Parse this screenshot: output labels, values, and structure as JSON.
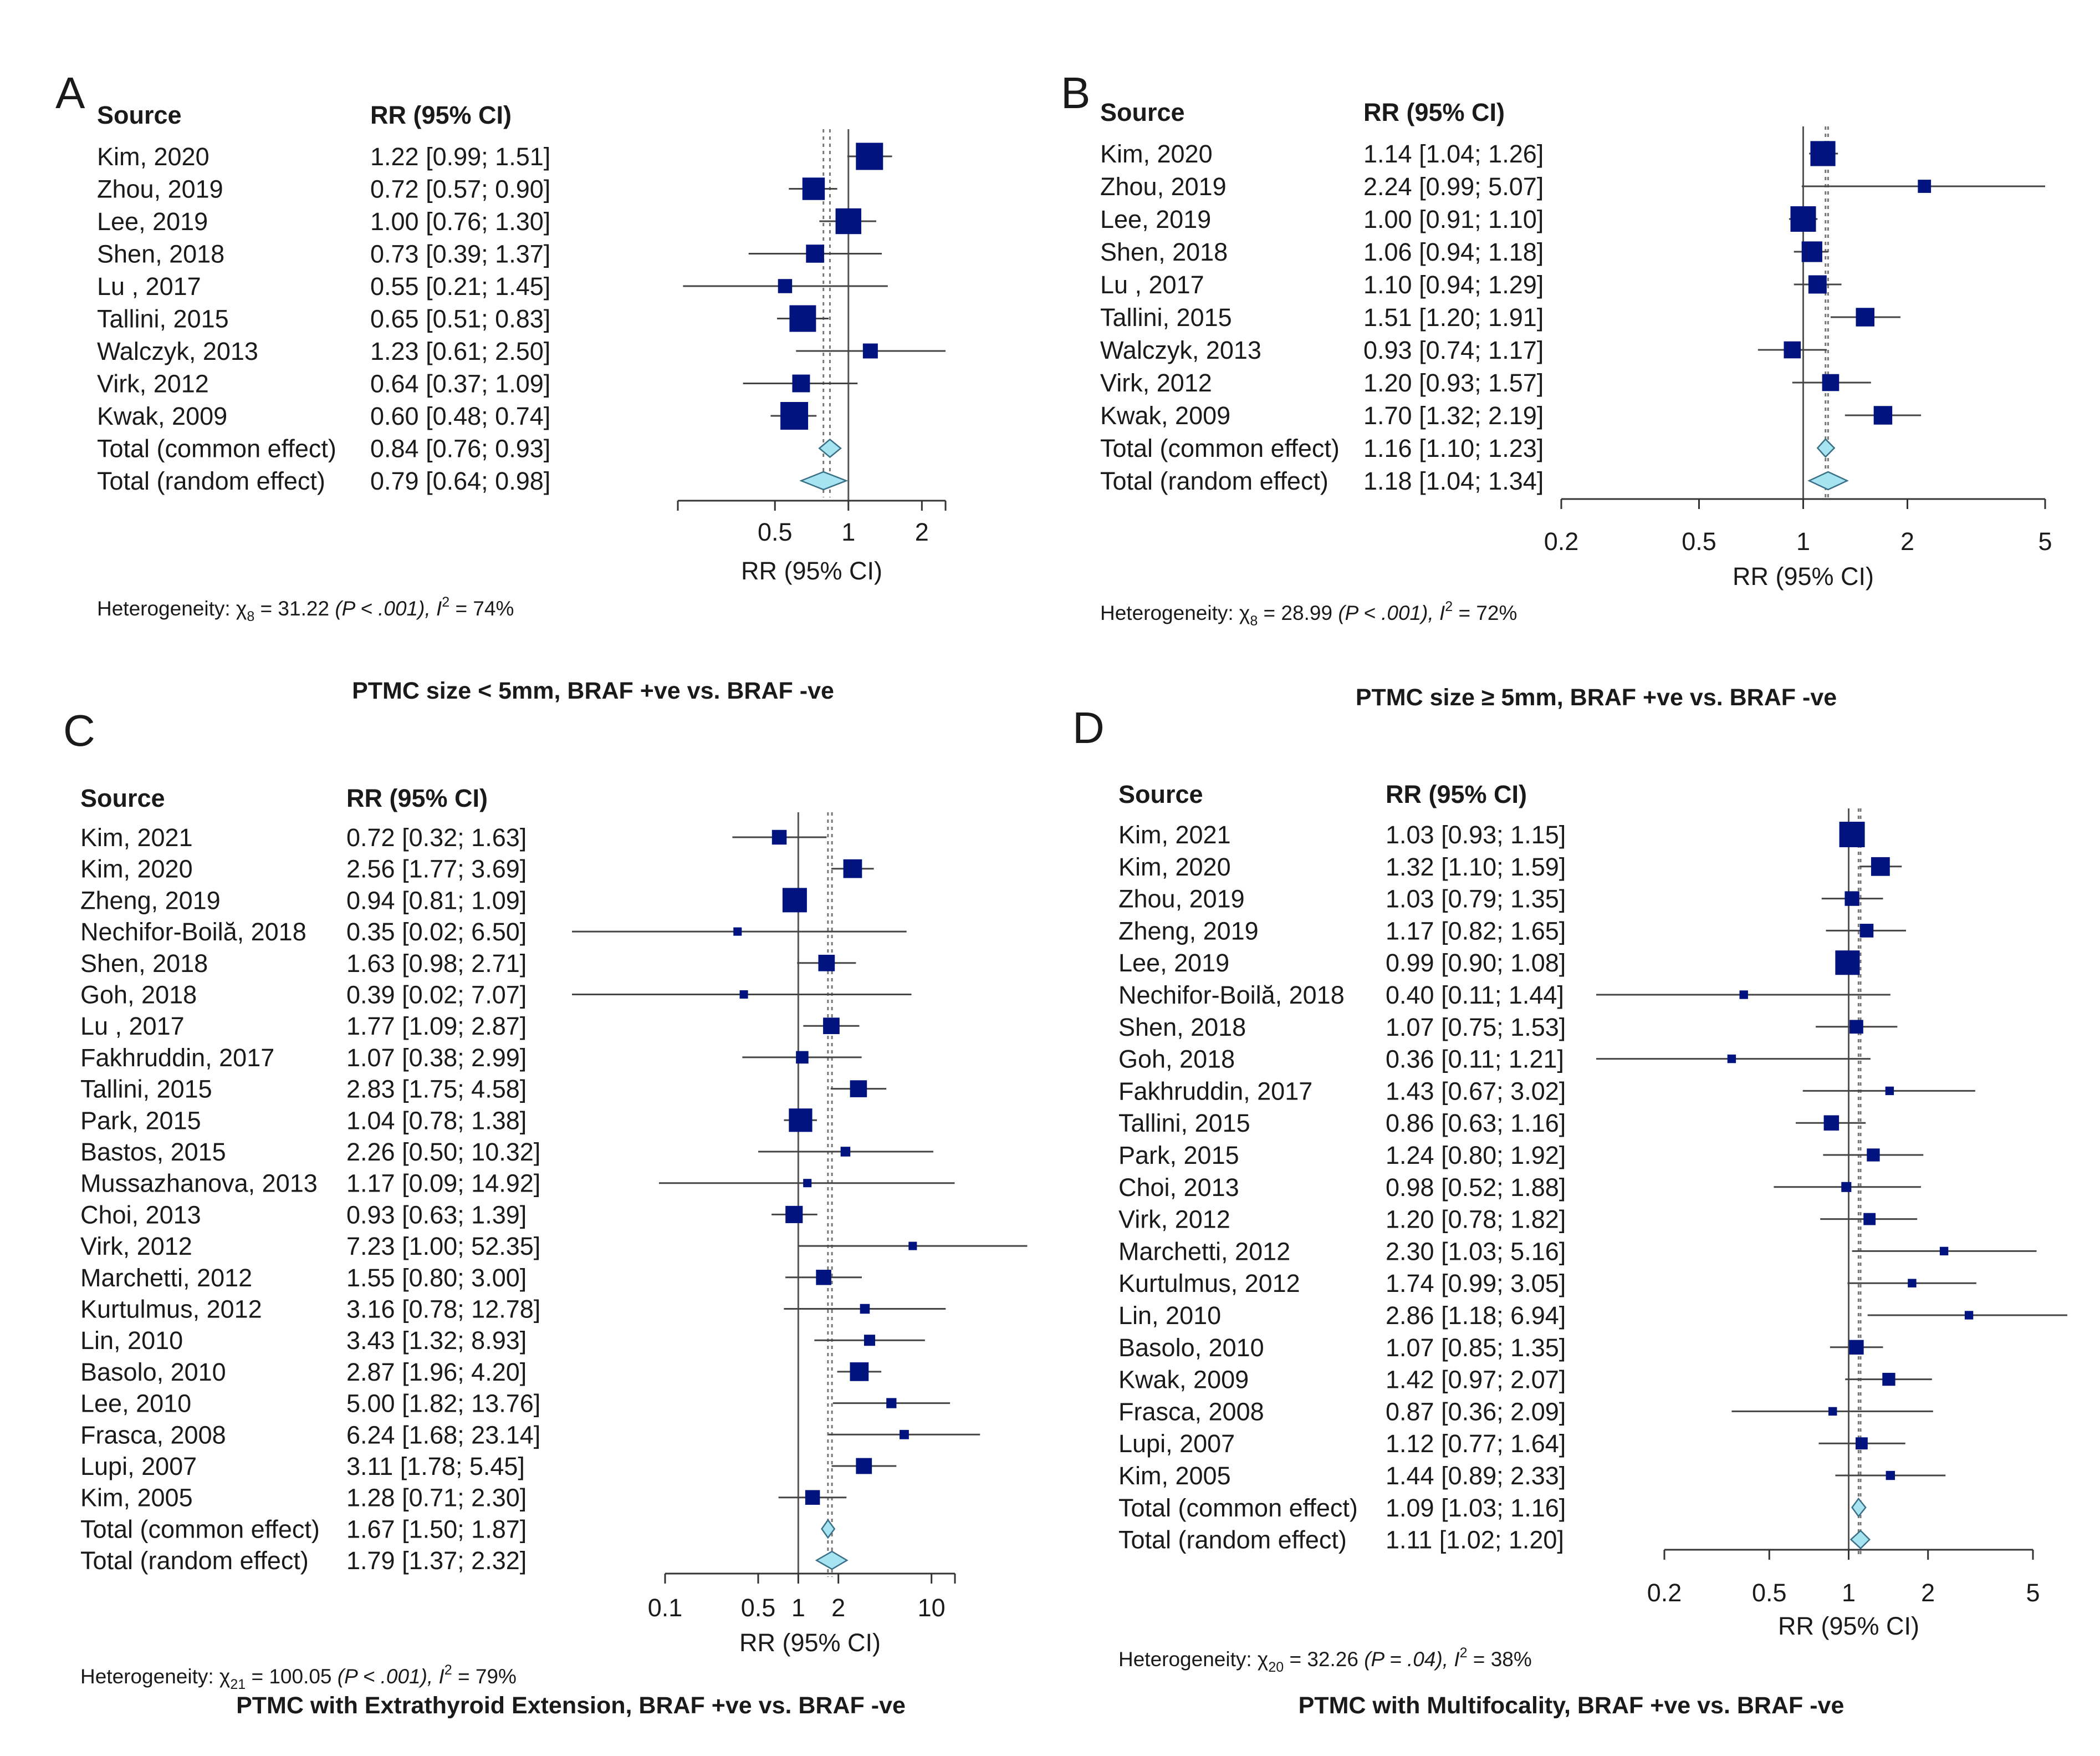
{
  "figure": {
    "type": "forest-plot-panels"
  },
  "colors": {
    "box": "#00137f",
    "diamond_fill": "#a6e4f2",
    "diamond_stroke": "#3a6f86",
    "ci_line": "#444444",
    "axis": "#333333",
    "ref_line": "#555555",
    "pooled_line": "#777777"
  },
  "chart_data": [
    {
      "type": "forest",
      "panel_label": "A",
      "scale": "log",
      "col_source": "Source",
      "col_estimate": "RR (95% CI)",
      "xlabel": "RR (95% CI)",
      "ticks": [
        "0.5",
        "1",
        "2"
      ],
      "xlim": [
        0.2,
        2.5
      ],
      "common_rr": 0.84,
      "random_rr": 0.79,
      "heterogeneity": {
        "prefix": "Heterogeneity: χ",
        "sub": "8",
        "chi": "= 31.22",
        "p": "(P < .001), ",
        "i": "I",
        "i_val": " = 74%"
      },
      "caption": "PTMC size < 5mm, BRAF +ve vs. BRAF -ve",
      "studies": [
        {
          "source": "Kim, 2020",
          "ci_text": "1.22 [0.99; 1.51]",
          "rr": 1.22,
          "lo": 0.99,
          "hi": 1.51,
          "weight": 9.5
        },
        {
          "source": "Zhou, 2019",
          "ci_text": "0.72 [0.57; 0.90]",
          "rr": 0.72,
          "lo": 0.57,
          "hi": 0.9,
          "weight": 5.8
        },
        {
          "source": "Lee, 2019",
          "ci_text": "1.00 [0.76; 1.30]",
          "rr": 1.0,
          "lo": 0.76,
          "hi": 1.3,
          "weight": 8.3
        },
        {
          "source": "Shen, 2018",
          "ci_text": "0.73 [0.39; 1.37]",
          "rr": 0.73,
          "lo": 0.39,
          "hi": 1.37,
          "weight": 3.2
        },
        {
          "source": "Lu , 2017",
          "ci_text": "0.55 [0.21; 1.45]",
          "rr": 0.55,
          "lo": 0.21,
          "hi": 1.45,
          "weight": 1.5
        },
        {
          "source": "Tallini, 2015",
          "ci_text": "0.65 [0.51; 0.83]",
          "rr": 0.65,
          "lo": 0.51,
          "hi": 0.83,
          "weight": 9.0
        },
        {
          "source": "Walczyk, 2013",
          "ci_text": "1.23 [0.61; 2.50]",
          "rr": 1.23,
          "lo": 0.61,
          "hi": 2.5,
          "weight": 1.8
        },
        {
          "source": "Virk, 2012",
          "ci_text": "0.64 [0.37; 1.09]",
          "rr": 0.64,
          "lo": 0.37,
          "hi": 1.09,
          "weight": 3.0
        },
        {
          "source": "Kwak, 2009",
          "ci_text": "0.60 [0.48; 0.74]",
          "rr": 0.6,
          "lo": 0.48,
          "hi": 0.74,
          "weight": 10.0
        }
      ],
      "totals": [
        {
          "source": "Total (common effect)",
          "ci_text": "0.84 [0.76; 0.93]",
          "rr": 0.84,
          "lo": 0.76,
          "hi": 0.93
        },
        {
          "source": "Total (random effect)",
          "ci_text": "0.79 [0.64; 0.98]",
          "rr": 0.79,
          "lo": 0.64,
          "hi": 0.98
        }
      ]
    },
    {
      "type": "forest",
      "panel_label": "B",
      "scale": "log",
      "col_source": "Source",
      "col_estimate": "RR (95% CI)",
      "xlabel": "RR (95% CI)",
      "ticks": [
        "0.2",
        "0.5",
        "1",
        "2",
        "5"
      ],
      "xlim": [
        0.2,
        5
      ],
      "common_rr": 1.16,
      "random_rr": 1.18,
      "heterogeneity": {
        "prefix": "Heterogeneity: χ",
        "sub": "8",
        "chi": "= 28.99",
        "p": "(P < .001), ",
        "i": "I",
        "i_val": " = 72%"
      },
      "caption": "PTMC size ≥ 5mm, BRAF +ve vs. BRAF -ve",
      "studies": [
        {
          "source": "Kim, 2020",
          "ci_text": "1.14 [1.04; 1.26]",
          "rr": 1.14,
          "lo": 1.04,
          "hi": 1.26,
          "weight": 9.5
        },
        {
          "source": "Zhou, 2019",
          "ci_text": "2.24 [0.99; 5.07]",
          "rr": 2.24,
          "lo": 0.99,
          "hi": 5.07,
          "weight": 1.2
        },
        {
          "source": "Lee, 2019",
          "ci_text": "1.00 [0.91; 1.10]",
          "rr": 1.0,
          "lo": 0.91,
          "hi": 1.1,
          "weight": 10.0
        },
        {
          "source": "Shen, 2018",
          "ci_text": "1.06 [0.94; 1.18]",
          "rr": 1.06,
          "lo": 0.94,
          "hi": 1.18,
          "weight": 5.5
        },
        {
          "source": "Lu , 2017",
          "ci_text": "1.10 [0.94; 1.29]",
          "rr": 1.1,
          "lo": 0.94,
          "hi": 1.29,
          "weight": 3.8
        },
        {
          "source": "Tallini, 2015",
          "ci_text": "1.51 [1.20; 1.91]",
          "rr": 1.51,
          "lo": 1.2,
          "hi": 1.91,
          "weight": 4.0
        },
        {
          "source": "Walczyk, 2013",
          "ci_text": "0.93 [0.74; 1.17]",
          "rr": 0.93,
          "lo": 0.74,
          "hi": 1.17,
          "weight": 3.0
        },
        {
          "source": "Virk, 2012",
          "ci_text": "1.20 [0.93; 1.57]",
          "rr": 1.2,
          "lo": 0.93,
          "hi": 1.57,
          "weight": 3.0
        },
        {
          "source": "Kwak, 2009",
          "ci_text": "1.70 [1.32; 2.19]",
          "rr": 1.7,
          "lo": 1.32,
          "hi": 2.19,
          "weight": 4.0
        }
      ],
      "totals": [
        {
          "source": "Total (common effect)",
          "ci_text": "1.16 [1.10; 1.23]",
          "rr": 1.16,
          "lo": 1.1,
          "hi": 1.23
        },
        {
          "source": "Total (random effect)",
          "ci_text": "1.18 [1.04; 1.34]",
          "rr": 1.18,
          "lo": 1.04,
          "hi": 1.34
        }
      ]
    },
    {
      "type": "forest",
      "panel_label": "C",
      "scale": "log",
      "col_source": "Source",
      "col_estimate": "RR (95% CI)",
      "xlabel": "RR (95% CI)",
      "ticks": [
        "0.1",
        "0.5",
        "1",
        "2",
        "10"
      ],
      "xlim": [
        0.1,
        15
      ],
      "common_rr": 1.67,
      "random_rr": 1.79,
      "heterogeneity": {
        "prefix": "Heterogeneity: χ",
        "sub": "21",
        "chi": "= 100.05",
        "p": "(P < .001), ",
        "i": "I",
        "i_val": " = 79%"
      },
      "caption": "PTMC with Extrathyroid Extension, BRAF +ve vs. BRAF -ve",
      "studies": [
        {
          "source": "Kim, 2021",
          "ci_text": "0.72 [0.32;  1.63]",
          "rr": 0.72,
          "lo": 0.32,
          "hi": 1.63,
          "weight": 2.5
        },
        {
          "source": "Kim, 2020",
          "ci_text": "2.56 [1.77;  3.69]",
          "rr": 2.56,
          "lo": 1.77,
          "hi": 3.69,
          "weight": 5.0
        },
        {
          "source": "Zheng, 2019",
          "ci_text": "0.94 [0.81;  1.09]",
          "rr": 0.94,
          "lo": 0.81,
          "hi": 1.09,
          "weight": 10.0
        },
        {
          "source": "Nechifor-Boilă, 2018",
          "ci_text": "0.35 [0.02;  6.50]",
          "rr": 0.35,
          "lo": 0.02,
          "hi": 6.5,
          "weight": 0.3
        },
        {
          "source": "Shen, 2018",
          "ci_text": "1.63 [0.98;  2.71]",
          "rr": 1.63,
          "lo": 0.98,
          "hi": 2.71,
          "weight": 3.5
        },
        {
          "source": "Goh, 2018",
          "ci_text": "0.39 [0.02;  7.07]",
          "rr": 0.39,
          "lo": 0.02,
          "hi": 7.07,
          "weight": 0.3
        },
        {
          "source": "Lu , 2017",
          "ci_text": "1.77 [1.09;  2.87]",
          "rr": 1.77,
          "lo": 1.09,
          "hi": 2.87,
          "weight": 3.5
        },
        {
          "source": "Fakhruddin, 2017",
          "ci_text": "1.07 [0.38;  2.99]",
          "rr": 1.07,
          "lo": 0.38,
          "hi": 2.99,
          "weight": 1.5
        },
        {
          "source": "Tallini, 2015",
          "ci_text": "2.83 [1.75;  4.58]",
          "rr": 2.83,
          "lo": 1.75,
          "hi": 4.58,
          "weight": 3.8
        },
        {
          "source": "Park, 2015",
          "ci_text": "1.04 [0.78;  1.38]",
          "rr": 1.04,
          "lo": 0.78,
          "hi": 1.38,
          "weight": 9.0
        },
        {
          "source": "Bastos, 2015",
          "ci_text": "2.26 [0.50; 10.32]",
          "rr": 2.26,
          "lo": 0.5,
          "hi": 10.32,
          "weight": 0.6
        },
        {
          "source": "Mussazhanova, 2013",
          "ci_text": "1.17 [0.09; 14.92]",
          "rr": 1.17,
          "lo": 0.09,
          "hi": 14.92,
          "weight": 0.3
        },
        {
          "source": "Choi, 2013",
          "ci_text": "0.93 [0.63;  1.39]",
          "rr": 0.93,
          "lo": 0.63,
          "hi": 1.39,
          "weight": 4.0
        },
        {
          "source": "Virk, 2012",
          "ci_text": "7.23 [1.00; 52.35]",
          "rr": 7.23,
          "lo": 1.0,
          "hi": 52.35,
          "weight": 0.3
        },
        {
          "source": "Marchetti, 2012",
          "ci_text": "1.55 [0.80;  3.00]",
          "rr": 1.55,
          "lo": 0.8,
          "hi": 3.0,
          "weight": 2.8
        },
        {
          "source": "Kurtulmus, 2012",
          "ci_text": "3.16 [0.78; 12.78]",
          "rr": 3.16,
          "lo": 0.78,
          "hi": 12.78,
          "weight": 0.6
        },
        {
          "source": "Lin, 2010",
          "ci_text": "3.43 [1.32;  8.93]",
          "rr": 3.43,
          "lo": 1.32,
          "hi": 8.93,
          "weight": 1.0
        },
        {
          "source": "Basolo, 2010",
          "ci_text": "2.87 [1.96;  4.20]",
          "rr": 2.87,
          "lo": 1.96,
          "hi": 4.2,
          "weight": 5.0
        },
        {
          "source": "Lee, 2010",
          "ci_text": "5.00 [1.82; 13.76]",
          "rr": 5.0,
          "lo": 1.82,
          "hi": 13.76,
          "weight": 0.7
        },
        {
          "source": "Frasca, 2008",
          "ci_text": "6.24 [1.68; 23.14]",
          "rr": 6.24,
          "lo": 1.68,
          "hi": 23.14,
          "weight": 0.5
        },
        {
          "source": "Lupi, 2007",
          "ci_text": "3.11 [1.78;  5.45]",
          "rr": 3.11,
          "lo": 1.78,
          "hi": 5.45,
          "weight": 3.2
        },
        {
          "source": "Kim, 2005",
          "ci_text": "1.28 [0.71;  2.30]",
          "rr": 1.28,
          "lo": 0.71,
          "hi": 2.3,
          "weight": 2.5
        }
      ],
      "totals": [
        {
          "source": "Total (common effect)",
          "ci_text": "1.67 [1.50;  1.87]",
          "rr": 1.67,
          "lo": 1.5,
          "hi": 1.87
        },
        {
          "source": "Total (random effect)",
          "ci_text": "1.79 [1.37;  2.32]",
          "rr": 1.79,
          "lo": 1.37,
          "hi": 2.32
        }
      ]
    },
    {
      "type": "forest",
      "panel_label": "D",
      "scale": "log",
      "col_source": "Source",
      "col_estimate": "RR (95% CI)",
      "xlabel": "RR (95% CI)",
      "ticks": [
        "0.2",
        "0.5",
        "1",
        "2",
        "5"
      ],
      "xlim": [
        0.2,
        5
      ],
      "common_rr": 1.09,
      "random_rr": 1.11,
      "heterogeneity": {
        "prefix": "Heterogeneity: χ",
        "sub": "20",
        "chi": "= 32.26",
        "p": "(P = .04), ",
        "i": "I",
        "i_val": " = 38%"
      },
      "caption": "PTMC with Multifocality, BRAF +ve vs. BRAF -ve",
      "studies": [
        {
          "source": "Kim, 2021",
          "ci_text": "1.03 [0.93; 1.15]",
          "rr": 1.03,
          "lo": 0.93,
          "hi": 1.15,
          "weight": 10.0
        },
        {
          "source": "Kim, 2020",
          "ci_text": "1.32 [1.10; 1.59]",
          "rr": 1.32,
          "lo": 1.1,
          "hi": 1.59,
          "weight": 4.5
        },
        {
          "source": "Zhou, 2019",
          "ci_text": "1.03 [0.79; 1.35]",
          "rr": 1.03,
          "lo": 0.79,
          "hi": 1.35,
          "weight": 2.2
        },
        {
          "source": "Zheng, 2019",
          "ci_text": "1.17 [0.82; 1.65]",
          "rr": 1.17,
          "lo": 0.82,
          "hi": 1.65,
          "weight": 1.8
        },
        {
          "source": "Lee, 2019",
          "ci_text": "0.99 [0.90; 1.08]",
          "rr": 0.99,
          "lo": 0.9,
          "hi": 1.08,
          "weight": 9.0
        },
        {
          "source": "Nechifor-Boilă, 2018",
          "ci_text": "0.40 [0.11; 1.44]",
          "rr": 0.4,
          "lo": 0.11,
          "hi": 1.44,
          "weight": 0.3
        },
        {
          "source": "Shen, 2018",
          "ci_text": "1.07 [0.75; 1.53]",
          "rr": 1.07,
          "lo": 0.75,
          "hi": 1.53,
          "weight": 1.8
        },
        {
          "source": "Goh, 2018",
          "ci_text": "0.36 [0.11; 1.21]",
          "rr": 0.36,
          "lo": 0.11,
          "hi": 1.21,
          "weight": 0.3
        },
        {
          "source": "Fakhruddin, 2017",
          "ci_text": "1.43 [0.67; 3.02]",
          "rr": 1.43,
          "lo": 0.67,
          "hi": 3.02,
          "weight": 0.3
        },
        {
          "source": "Tallini, 2015",
          "ci_text": "0.86 [0.63; 1.16]",
          "rr": 0.86,
          "lo": 0.63,
          "hi": 1.16,
          "weight": 2.5
        },
        {
          "source": "Park, 2015",
          "ci_text": "1.24 [0.80; 1.92]",
          "rr": 1.24,
          "lo": 0.8,
          "hi": 1.92,
          "weight": 1.5
        },
        {
          "source": "Choi, 2013",
          "ci_text": "0.98 [0.52; 1.88]",
          "rr": 0.98,
          "lo": 0.52,
          "hi": 1.88,
          "weight": 0.6
        },
        {
          "source": "Virk, 2012",
          "ci_text": "1.20 [0.78; 1.82]",
          "rr": 1.2,
          "lo": 0.78,
          "hi": 1.82,
          "weight": 1.2
        },
        {
          "source": "Marchetti, 2012",
          "ci_text": "2.30 [1.03; 5.16]",
          "rr": 2.3,
          "lo": 1.03,
          "hi": 5.16,
          "weight": 0.3
        },
        {
          "source": "Kurtulmus, 2012",
          "ci_text": "1.74 [0.99; 3.05]",
          "rr": 1.74,
          "lo": 0.99,
          "hi": 3.05,
          "weight": 0.3
        },
        {
          "source": "Lin, 2010",
          "ci_text": "2.86 [1.18; 6.94]",
          "rr": 2.86,
          "lo": 1.18,
          "hi": 6.94,
          "weight": 0.3
        },
        {
          "source": "Basolo, 2010",
          "ci_text": "1.07 [0.85; 1.35]",
          "rr": 1.07,
          "lo": 0.85,
          "hi": 1.35,
          "weight": 2.2
        },
        {
          "source": "Kwak, 2009",
          "ci_text": "1.42 [0.97; 2.07]",
          "rr": 1.42,
          "lo": 0.97,
          "hi": 2.07,
          "weight": 1.5
        },
        {
          "source": "Frasca, 2008",
          "ci_text": "0.87 [0.36; 2.09]",
          "rr": 0.87,
          "lo": 0.36,
          "hi": 2.09,
          "weight": 0.3
        },
        {
          "source": "Lupi, 2007",
          "ci_text": "1.12 [0.77; 1.64]",
          "rr": 1.12,
          "lo": 0.77,
          "hi": 1.64,
          "weight": 1.2
        },
        {
          "source": "Kim, 2005",
          "ci_text": "1.44 [0.89; 2.33]",
          "rr": 1.44,
          "lo": 0.89,
          "hi": 2.33,
          "weight": 0.4
        }
      ],
      "totals": [
        {
          "source": "Total (common effect)",
          "ci_text": "1.09 [1.03; 1.16]",
          "rr": 1.09,
          "lo": 1.03,
          "hi": 1.16
        },
        {
          "source": "Total (random effect)",
          "ci_text": "1.11 [1.02; 1.20]",
          "rr": 1.11,
          "lo": 1.02,
          "hi": 1.2
        }
      ]
    }
  ]
}
